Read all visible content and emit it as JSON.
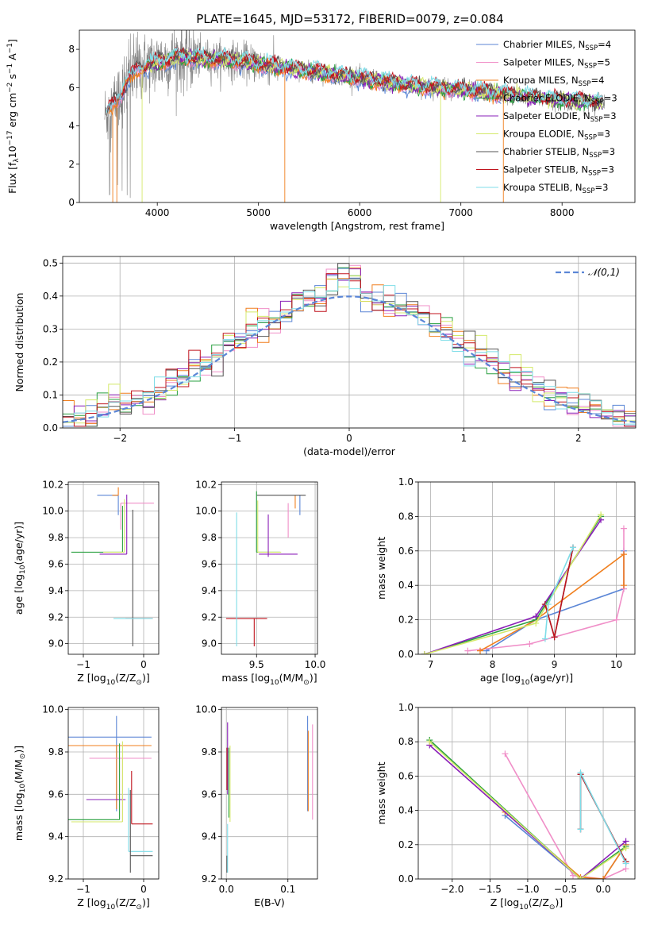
{
  "figure_title": "PLATE=1645, MJD=53172, FIBERID=0079, z=0.084",
  "colors": {
    "c_miles": "#5b86d6",
    "s_miles": "#f08fc8",
    "k_miles": "#f07f1e",
    "c_elodie": "#2aa040",
    "s_elodie": "#8a1fb8",
    "k_elodie": "#d4e96a",
    "c_stelib": "#555555",
    "s_stelib": "#c0141e",
    "k_stelib": "#7fdde8",
    "raw": "#808080",
    "gauss": "#5b86d6",
    "grid": "#b0b0b0"
  },
  "chart_data": [
    {
      "id": "spectrum",
      "type": "line",
      "title": "PLATE=1645, MJD=53172, FIBERID=0079, z=0.084",
      "xlabel": "wavelength [Angstrom, rest frame]",
      "ylabel": "Flux [f",
      "ylabel_full": "Flux [fλ10⁻¹⁷ erg cm⁻² s⁻¹ A⁻¹]",
      "xlim": [
        3230,
        8720
      ],
      "ylim": [
        0,
        9
      ],
      "xticks": [
        4000,
        5000,
        6000,
        7000,
        8000
      ],
      "yticks": [
        0,
        2,
        4,
        6,
        8
      ],
      "grid": false,
      "legend_position": "top-right",
      "continuum_anchors": {
        "x": [
          3500,
          3800,
          4200,
          4800,
          5300,
          6000,
          6500,
          7000,
          7500,
          8000,
          8400
        ],
        "y": [
          4.6,
          7.0,
          7.6,
          7.4,
          7.0,
          6.5,
          6.1,
          5.9,
          5.6,
          5.3,
          5.2
        ]
      },
      "legend": [
        {
          "label": "Chabrier MILES, N",
          "sub": "SSP",
          "n": "=4",
          "color_key": "c_miles"
        },
        {
          "label": "Salpeter MILES, N",
          "sub": "SSP",
          "n": "=5",
          "color_key": "s_miles"
        },
        {
          "label": "Kroupa MILES, N",
          "sub": "SSP",
          "n": "=4",
          "color_key": "k_miles"
        },
        {
          "label": "Chabrier ELODIE, N",
          "sub": "SSP",
          "n": "=3",
          "color_key": "c_elodie"
        },
        {
          "label": "Salpeter ELODIE, N",
          "sub": "SSP",
          "n": "=3",
          "color_key": "s_elodie"
        },
        {
          "label": "Kroupa ELODIE, N",
          "sub": "SSP",
          "n": "=3",
          "color_key": "k_elodie"
        },
        {
          "label": "Chabrier STELIB, N",
          "sub": "SSP",
          "n": "=3",
          "color_key": "c_stelib"
        },
        {
          "label": "Salpeter STELIB, N",
          "sub": "SSP",
          "n": "=3",
          "color_key": "s_stelib"
        },
        {
          "label": "Kroupa STELIB, N",
          "sub": "SSP",
          "n": "=3",
          "color_key": "k_stelib"
        }
      ]
    },
    {
      "id": "residuals",
      "type": "line",
      "xlabel": "(data-model)/error",
      "ylabel": "Normed distribution",
      "xlim": [
        -2.5,
        2.5
      ],
      "ylim": [
        0,
        0.52
      ],
      "xticks": [
        -2,
        -1,
        0,
        1,
        2
      ],
      "yticks": [
        0.0,
        0.1,
        0.2,
        0.3,
        0.4,
        0.5
      ],
      "grid": true,
      "legend_position": "top-right",
      "gaussian_label": "𝒩(0,1)",
      "bin_width": 0.1
    },
    {
      "id": "age_vs_Z",
      "type": "scatter",
      "xlabel": "Z [log",
      "xlabel_full": "Z [log10(Z/Z⊙)]",
      "ylabel": "age  [log",
      "ylabel_full": "age [log10(age/yr)]",
      "xlim": [
        -1.25,
        0.25
      ],
      "ylim": [
        8.92,
        10.22
      ],
      "xticks": [
        -1,
        0
      ],
      "yticks": [
        9.0,
        9.2,
        9.4,
        9.6,
        9.8,
        10.0,
        10.2
      ],
      "grid": true,
      "errorbars": [
        {
          "color_key": "c_miles",
          "x": -0.42,
          "y": 10.12,
          "xerr": [
            0.35,
            0.0
          ],
          "yerr": [
            0.15,
            0.0
          ]
        },
        {
          "color_key": "k_miles",
          "x": -0.42,
          "y": 10.12,
          "xerr": [
            0.1,
            0.0
          ],
          "yerr": [
            0.0,
            0.06
          ]
        },
        {
          "color_key": "s_miles",
          "x": -0.38,
          "y": 10.06,
          "xerr": [
            0.0,
            0.55
          ],
          "yerr": [
            0.2,
            0.0
          ]
        },
        {
          "color_key": "c_elodie",
          "x": -0.35,
          "y": 9.69,
          "xerr": [
            0.85,
            0.0
          ],
          "yerr": [
            0.0,
            0.35
          ]
        },
        {
          "color_key": "k_elodie",
          "x": -0.32,
          "y": 9.69,
          "xerr": [
            0.35,
            0.0
          ],
          "yerr": [
            0.0,
            0.4
          ]
        },
        {
          "color_key": "s_elodie",
          "x": -0.28,
          "y": 9.675,
          "xerr": [
            0.45,
            0.0
          ],
          "yerr": [
            0.0,
            0.45
          ]
        },
        {
          "color_key": "c_stelib",
          "x": -0.18,
          "y": 9.19,
          "xerr": [
            0.0,
            0.0
          ],
          "yerr": [
            0.21,
            0.82
          ]
        },
        {
          "color_key": "s_stelib",
          "x": -0.2,
          "y": 9.19,
          "xerr": [
            0.1,
            0.35
          ],
          "yerr": [
            0.0,
            0.0
          ]
        },
        {
          "color_key": "k_stelib",
          "x": -0.2,
          "y": 9.19,
          "xerr": [
            0.3,
            0.35
          ],
          "yerr": [
            0.0,
            0.0
          ]
        }
      ]
    },
    {
      "id": "age_vs_mass",
      "type": "scatter",
      "xlabel": "mass [log",
      "ylabel": "",
      "xlim": [
        9.2,
        10.02
      ],
      "ylim": [
        8.92,
        10.22
      ],
      "xticks": [
        9.5,
        10.0
      ],
      "yticks": [
        9.0,
        9.2,
        9.4,
        9.6,
        9.8,
        10.0,
        10.2
      ],
      "grid": true,
      "errorbars": [
        {
          "color_key": "c_miles",
          "x": 9.87,
          "y": 10.12,
          "xerr": [
            0.0,
            0.0
          ],
          "yerr": [
            0.15,
            0.0
          ]
        },
        {
          "color_key": "s_miles",
          "x": 9.77,
          "y": 10.06,
          "xerr": [
            0.0,
            0.0
          ],
          "yerr": [
            0.26,
            0.0
          ]
        },
        {
          "color_key": "k_miles",
          "x": 9.83,
          "y": 10.12,
          "xerr": [
            0.0,
            0.0
          ],
          "yerr": [
            0.1,
            0.0
          ]
        },
        {
          "color_key": "c_stelib",
          "x": 9.5,
          "y": 10.12,
          "xerr": [
            0.0,
            0.42
          ],
          "yerr": [
            0.0,
            0.0
          ]
        },
        {
          "color_key": "c_elodie",
          "x": 9.5,
          "y": 9.69,
          "xerr": [
            0.0,
            0.2
          ],
          "yerr": [
            0.0,
            0.46
          ]
        },
        {
          "color_key": "k_elodie",
          "x": 9.51,
          "y": 9.69,
          "xerr": [
            0.0,
            0.2
          ],
          "yerr": [
            0.0,
            0.39
          ]
        },
        {
          "color_key": "s_elodie",
          "x": 9.6,
          "y": 9.675,
          "xerr": [
            0.08,
            0.25
          ],
          "yerr": [
            0.02,
            0.3
          ]
        },
        {
          "color_key": "s_stelib",
          "x": 9.48,
          "y": 9.19,
          "xerr": [
            0.24,
            0.11
          ],
          "yerr": [
            0.21,
            0.0
          ]
        },
        {
          "color_key": "k_stelib",
          "x": 9.33,
          "y": 9.19,
          "xerr": [
            0.0,
            0.0
          ],
          "yerr": [
            0.21,
            0.8
          ]
        }
      ]
    },
    {
      "id": "mass_weight_vs_age",
      "type": "line",
      "xlabel": "age  [log",
      "xlabel_full": "age [log10(age/yr)]",
      "ylabel": "mass weight",
      "xlim": [
        6.8,
        10.3
      ],
      "ylim": [
        0,
        1.0
      ],
      "xticks": [
        7,
        8,
        9,
        10
      ],
      "yticks": [
        0.0,
        0.2,
        0.4,
        0.6,
        0.8,
        1.0
      ],
      "grid": true,
      "series": [
        {
          "color_key": "c_miles",
          "x": [
            7.9,
            8.7,
            10.12,
            10.12
          ],
          "y": [
            0.02,
            0.2,
            0.38,
            0.6
          ]
        },
        {
          "color_key": "s_miles",
          "x": [
            7.6,
            8.6,
            10.0,
            10.12,
            10.12
          ],
          "y": [
            0.02,
            0.06,
            0.2,
            0.38,
            0.73
          ]
        },
        {
          "color_key": "k_miles",
          "x": [
            7.8,
            8.7,
            10.12,
            10.12
          ],
          "y": [
            0.02,
            0.2,
            0.58,
            0.4
          ]
        },
        {
          "color_key": "c_elodie",
          "x": [
            6.9,
            8.7,
            9.75
          ],
          "y": [
            0.0,
            0.2,
            0.8
          ]
        },
        {
          "color_key": "s_elodie",
          "x": [
            6.9,
            8.7,
            9.75
          ],
          "y": [
            0.0,
            0.22,
            0.78
          ]
        },
        {
          "color_key": "k_elodie",
          "x": [
            6.9,
            8.7,
            9.75
          ],
          "y": [
            0.0,
            0.18,
            0.81
          ]
        },
        {
          "color_key": "c_stelib",
          "x": [
            8.85,
            9.0,
            9.3
          ],
          "y": [
            0.29,
            0.1,
            0.62
          ]
        },
        {
          "color_key": "s_stelib",
          "x": [
            8.85,
            9.0,
            9.3
          ],
          "y": [
            0.29,
            0.1,
            0.62
          ]
        },
        {
          "color_key": "k_stelib",
          "x": [
            8.85,
            8.9,
            9.3
          ],
          "y": [
            0.09,
            0.29,
            0.62
          ]
        }
      ]
    },
    {
      "id": "mass_vs_Z",
      "type": "scatter",
      "xlabel": "Z [log",
      "ylabel": "mass [log",
      "ylabel_full": "mass [log10(M/M⊙)]",
      "xlim": [
        -1.25,
        0.25
      ],
      "ylim": [
        9.2,
        10.01
      ],
      "xticks": [
        -1,
        0
      ],
      "yticks": [
        9.2,
        9.4,
        9.6,
        9.8,
        10.0
      ],
      "grid": true,
      "errorbars": [
        {
          "color_key": "c_miles",
          "x": -0.45,
          "y": 9.87,
          "xerr": [
            0.8,
            0.58
          ],
          "yerr": [
            0.35,
            0.1
          ]
        },
        {
          "color_key": "k_miles",
          "x": -0.45,
          "y": 9.83,
          "xerr": [
            0.8,
            0.58
          ],
          "yerr": [
            0.3,
            0.0
          ]
        },
        {
          "color_key": "s_miles",
          "x": -0.35,
          "y": 9.77,
          "xerr": [
            0.55,
            0.48
          ],
          "yerr": [
            0.3,
            0.0
          ]
        },
        {
          "color_key": "s_elodie",
          "x": -0.45,
          "y": 9.575,
          "xerr": [
            0.5,
            0.15
          ],
          "yerr": [
            0.0,
            0.0
          ]
        },
        {
          "color_key": "c_elodie",
          "x": -0.4,
          "y": 9.48,
          "xerr": [
            0.85,
            0.0
          ],
          "yerr": [
            0.0,
            0.36
          ]
        },
        {
          "color_key": "k_elodie",
          "x": -0.35,
          "y": 9.47,
          "xerr": [
            0.85,
            0.0
          ],
          "yerr": [
            0.0,
            0.38
          ]
        },
        {
          "color_key": "s_stelib",
          "x": -0.2,
          "y": 9.46,
          "xerr": [
            0.0,
            0.35
          ],
          "yerr": [
            0.0,
            0.25
          ]
        },
        {
          "color_key": "k_stelib",
          "x": -0.25,
          "y": 9.33,
          "xerr": [
            0.0,
            0.4
          ],
          "yerr": [
            0.0,
            0.3
          ]
        },
        {
          "color_key": "c_stelib",
          "x": -0.22,
          "y": 9.31,
          "xerr": [
            0.0,
            0.37
          ],
          "yerr": [
            0.08,
            0.31
          ]
        }
      ]
    },
    {
      "id": "mass_vs_EBV",
      "type": "scatter",
      "xlabel": "E(B-V)",
      "ylabel": "",
      "xlim": [
        -0.008,
        0.148
      ],
      "ylim": [
        9.2,
        10.01
      ],
      "xticks": [
        0.0,
        0.1
      ],
      "yticks": [
        9.2,
        9.4,
        9.6,
        9.8,
        10.0
      ],
      "grid": true,
      "errorbars": [
        {
          "color_key": "s_elodie",
          "x": 0.002,
          "y": 9.71,
          "xerr": [
            0.0,
            0.0
          ],
          "yerr": [
            0.11,
            0.23
          ]
        },
        {
          "color_key": "s_stelib",
          "x": 0.001,
          "y": 9.72,
          "xerr": [
            0.0,
            0.0
          ],
          "yerr": [
            0.1,
            0.1
          ]
        },
        {
          "color_key": "c_stelib",
          "x": 0.001,
          "y": 9.31,
          "xerr": [
            0.0,
            0.0
          ],
          "yerr": [
            0.08,
            0.0
          ]
        },
        {
          "color_key": "k_stelib",
          "x": 0.002,
          "y": 9.4,
          "xerr": [
            0.0,
            0.0
          ],
          "yerr": [
            0.17,
            0.06
          ]
        },
        {
          "color_key": "c_elodie",
          "x": 0.004,
          "y": 9.67,
          "xerr": [
            0.0,
            0.0
          ],
          "yerr": [
            0.18,
            0.15
          ]
        },
        {
          "color_key": "k_elodie",
          "x": 0.006,
          "y": 9.65,
          "xerr": [
            0.0,
            0.0
          ],
          "yerr": [
            0.18,
            0.18
          ]
        },
        {
          "color_key": "c_miles",
          "x": 0.132,
          "y": 9.75,
          "xerr": [
            0.0,
            0.0
          ],
          "yerr": [
            0.23,
            0.22
          ]
        },
        {
          "color_key": "k_miles",
          "x": 0.133,
          "y": 9.72,
          "xerr": [
            0.0,
            0.0
          ],
          "yerr": [
            0.2,
            0.18
          ]
        },
        {
          "color_key": "s_miles",
          "x": 0.14,
          "y": 9.7,
          "xerr": [
            0.0,
            0.0
          ],
          "yerr": [
            0.22,
            0.23
          ]
        }
      ]
    },
    {
      "id": "mass_weight_vs_Z",
      "type": "line",
      "xlabel": "Z [log",
      "ylabel": "mass weight",
      "xlim": [
        -2.45,
        0.42
      ],
      "ylim": [
        0,
        1.0
      ],
      "xticks": [
        -2.0,
        -1.5,
        -1.0,
        -0.5,
        0.0
      ],
      "yticks": [
        0.0,
        0.2,
        0.4,
        0.6,
        0.8,
        1.0
      ],
      "grid": true,
      "series": [
        {
          "color_key": "c_miles",
          "x": [
            -1.3,
            -0.3,
            0.0,
            0.3
          ],
          "y": [
            0.37,
            0.0,
            0.0,
            0.2
          ]
        },
        {
          "color_key": "s_miles",
          "x": [
            -1.3,
            -0.4,
            0.0,
            0.3
          ],
          "y": [
            0.73,
            0.02,
            0.0,
            0.06
          ]
        },
        {
          "color_key": "k_miles",
          "x": [
            -1.3,
            -0.3,
            0.0,
            0.3
          ],
          "y": [
            0.39,
            0.01,
            0.0,
            0.2
          ]
        },
        {
          "color_key": "c_elodie",
          "x": [
            -2.3,
            -0.3,
            0.3
          ],
          "y": [
            0.81,
            0.0,
            0.19
          ]
        },
        {
          "color_key": "s_elodie",
          "x": [
            -2.3,
            -0.3,
            0.3
          ],
          "y": [
            0.78,
            0.0,
            0.22
          ]
        },
        {
          "color_key": "k_elodie",
          "x": [
            -2.3,
            -0.3,
            0.3
          ],
          "y": [
            0.8,
            0.0,
            0.18
          ]
        },
        {
          "color_key": "c_stelib",
          "x": [
            -0.3,
            -0.3,
            0.3
          ],
          "y": [
            0.29,
            0.61,
            0.1
          ]
        },
        {
          "color_key": "s_stelib",
          "x": [
            -0.3,
            -0.3,
            0.3
          ],
          "y": [
            0.29,
            0.61,
            0.1
          ]
        },
        {
          "color_key": "k_stelib",
          "x": [
            -0.3,
            -0.3,
            0.3
          ],
          "y": [
            0.29,
            0.62,
            0.09
          ]
        }
      ]
    }
  ]
}
